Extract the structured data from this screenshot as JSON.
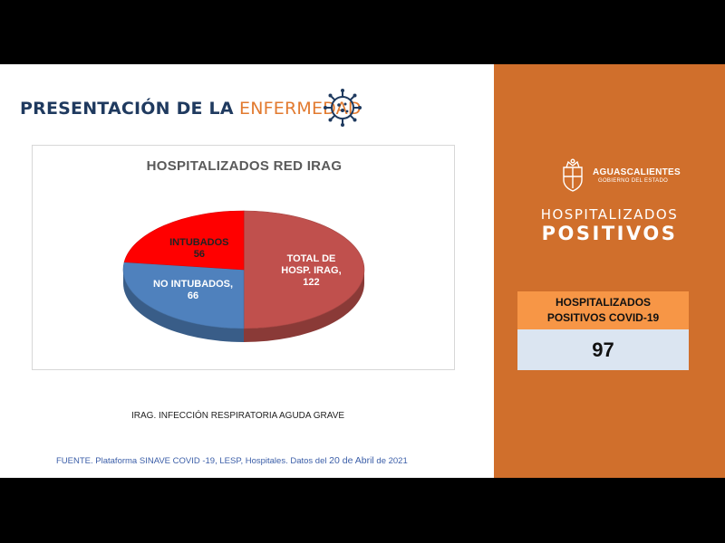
{
  "header": {
    "title_bold": "PRESENTACIÓN DE LA",
    "title_light": "ENFERMEDAD",
    "icon": "virus-icon"
  },
  "chart_data": {
    "type": "pie",
    "title": "HOSPITALIZADOS RED IRAG",
    "slices": [
      {
        "label": "TOTAL DE HOSP. IRAG",
        "label_lines": [
          "TOTAL DE",
          "HOSP. IRAG,",
          "122"
        ],
        "value": 122,
        "color": "#c0504d"
      },
      {
        "label": "NO INTUBADOS",
        "label_lines": [
          "NO INTUBADOS,",
          "66"
        ],
        "value": 66,
        "color": "#4f81bd"
      },
      {
        "label": "INTUBADOS",
        "label_lines": [
          "INTUBADOS",
          "56"
        ],
        "value": 56,
        "color": "#ff0000"
      }
    ]
  },
  "footnote": "IRAG. INFECCIÓN RESPIRATORIA AGUDA GRAVE",
  "source": {
    "part1": "FUENTE. Plataforma SINAVE COVID -19, LESP, Hospitales. Datos del",
    "part2": "20 de Abril",
    "part3": "de 2021"
  },
  "panel": {
    "logo_icon": "coat-of-arms-icon",
    "logo_name": "AGUASCALIENTES",
    "logo_sub": "GOBIERNO DEL ESTADO",
    "title_line1": "HOSPITALIZADOS",
    "title_line2": "POSITIVOS",
    "stat_label": "HOSPITALIZADOS POSITIVOS COVID-19",
    "stat_value": "97"
  }
}
